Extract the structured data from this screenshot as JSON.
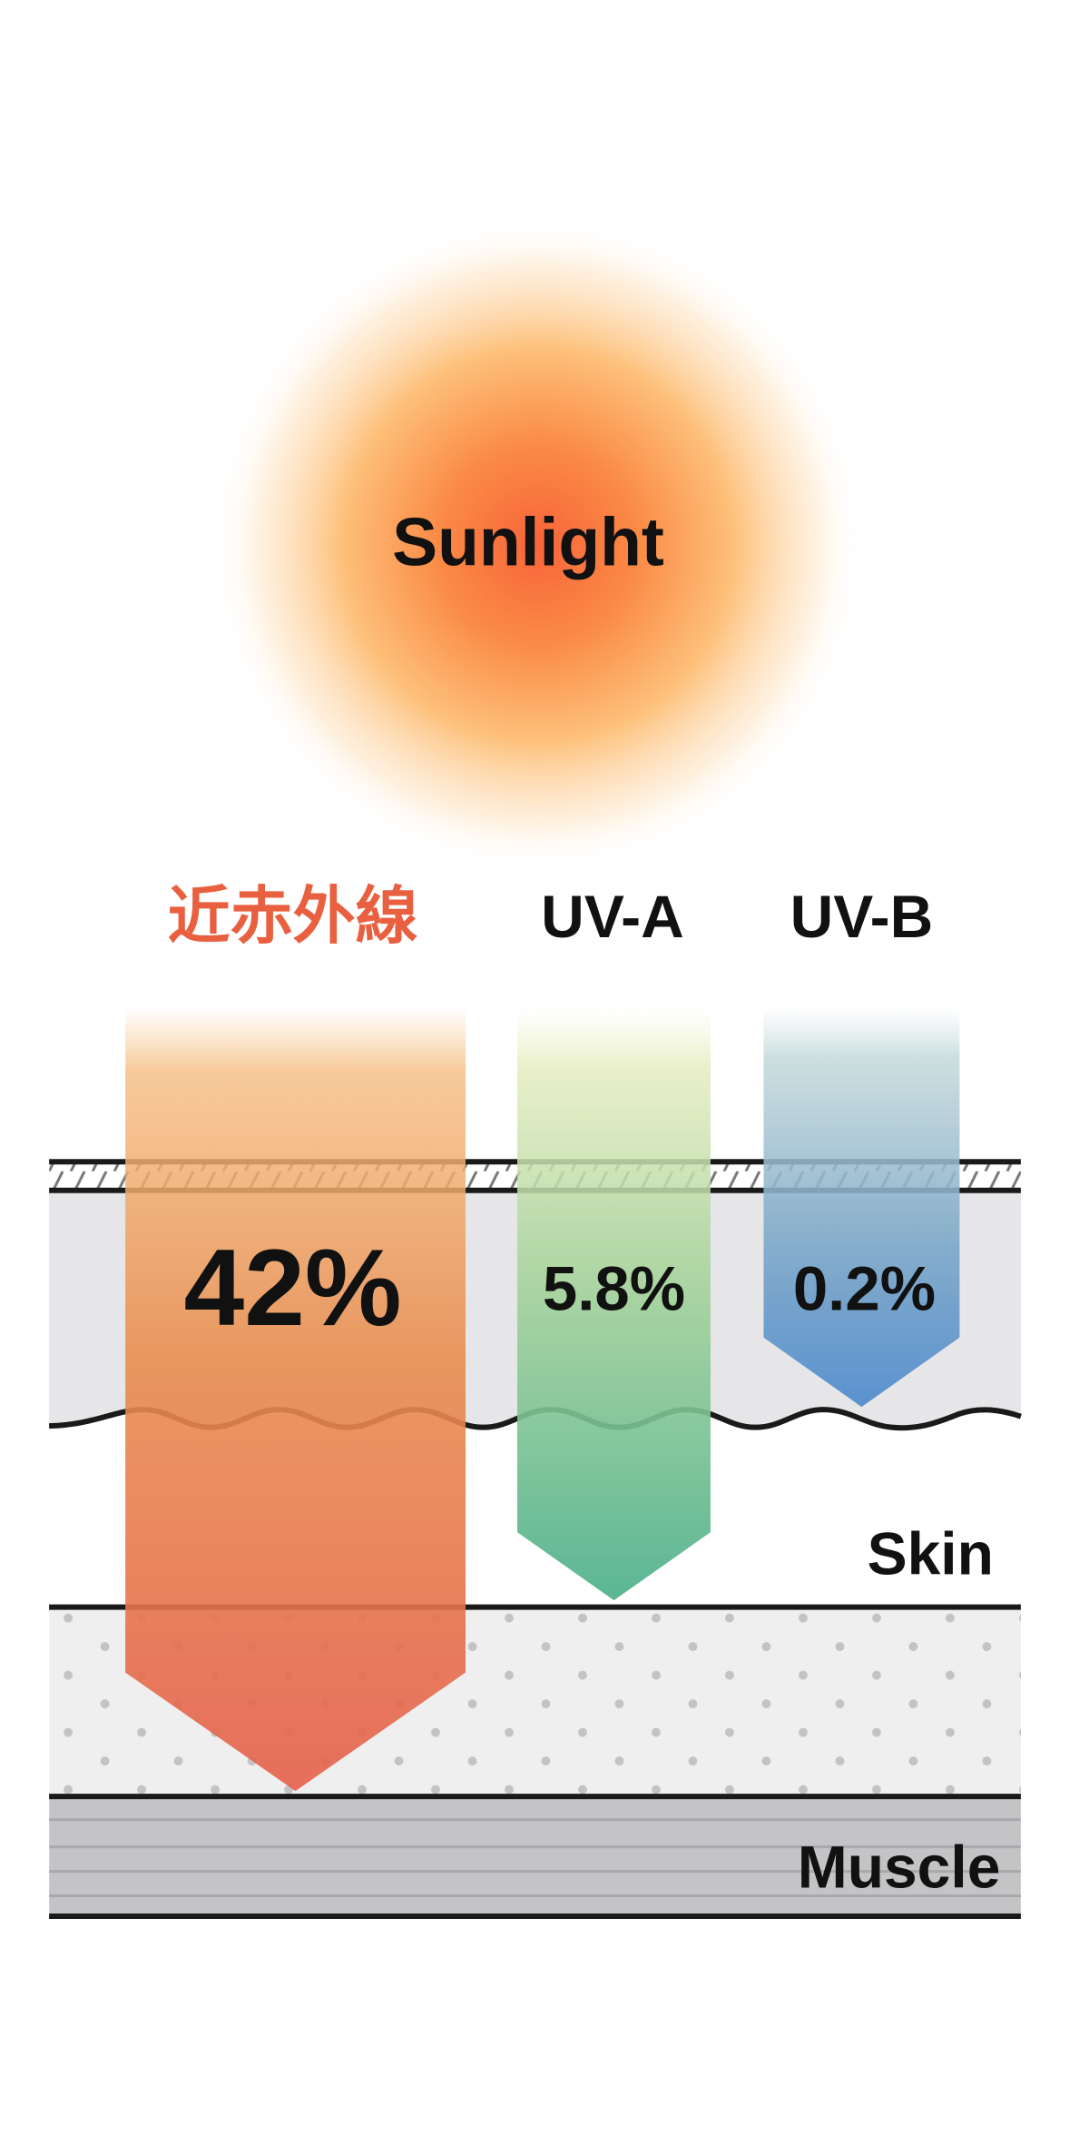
{
  "sun": {
    "label": "Sunlight"
  },
  "rays": [
    {
      "label": "近赤外線",
      "percent": "42%",
      "color": "#e8603f",
      "depth": "subcutaneous"
    },
    {
      "label": "UV-A",
      "percent": "5.8%",
      "color": "#4db08a",
      "depth": "dermis"
    },
    {
      "label": "UV-B",
      "percent": "0.2%",
      "color": "#4a8ccc",
      "depth": "epidermis"
    }
  ],
  "layers": {
    "skin": "Skin",
    "muscle": "Muscle"
  },
  "colors": {
    "label_accent": "#e8603f",
    "skin_band": "#e6e6e8",
    "subcutaneous": "#efeff0",
    "muscle": "#c4c4c6",
    "line": "#1a1a1a"
  }
}
